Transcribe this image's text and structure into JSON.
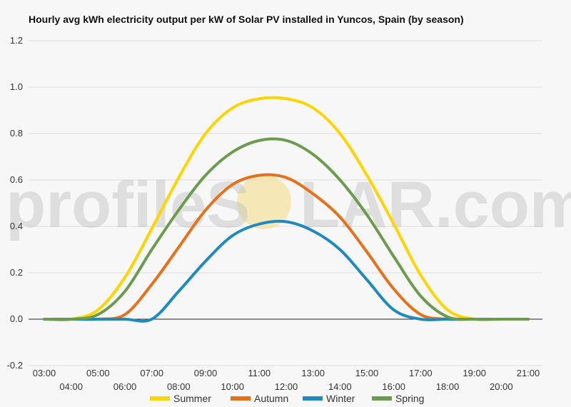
{
  "chart_data": {
    "type": "line",
    "title": "Hourly avg kWh electricity output per kW of Solar PV installed in Yuncos, Spain (by season)",
    "xlabel": "",
    "ylabel": "",
    "ylim": [
      -0.2,
      1.2
    ],
    "yticks": [
      "-0.2",
      "0.0",
      "0.2",
      "0.4",
      "0.6",
      "0.8",
      "1.0",
      "1.2"
    ],
    "ytick_values": [
      -0.2,
      0.0,
      0.2,
      0.4,
      0.6,
      0.8,
      1.0,
      1.2
    ],
    "x_hours": [
      3,
      4,
      5,
      6,
      7,
      8,
      9,
      10,
      11,
      12,
      13,
      14,
      15,
      16,
      17,
      18,
      19,
      20,
      21
    ],
    "xticks": [
      "03:00",
      "04:00",
      "05:00",
      "06:00",
      "07:00",
      "08:00",
      "09:00",
      "10:00",
      "11:00",
      "12:00",
      "13:00",
      "14:00",
      "15:00",
      "16:00",
      "17:00",
      "18:00",
      "19:00",
      "20:00",
      "21:00"
    ],
    "grid": true,
    "legend_position": "bottom",
    "series": [
      {
        "name": "Summer",
        "color": "#ffd400",
        "values": [
          0.0,
          0.0,
          0.04,
          0.18,
          0.39,
          0.61,
          0.8,
          0.91,
          0.95,
          0.95,
          0.91,
          0.8,
          0.62,
          0.41,
          0.19,
          0.04,
          0.0,
          0.0,
          0.0
        ]
      },
      {
        "name": "Autumn",
        "color": "#e8701a",
        "values": [
          0.0,
          0.0,
          0.0,
          0.02,
          0.15,
          0.31,
          0.47,
          0.58,
          0.62,
          0.61,
          0.54,
          0.44,
          0.29,
          0.13,
          0.02,
          0.0,
          0.0,
          0.0,
          0.0
        ]
      },
      {
        "name": "Winter",
        "color": "#1f8ac0",
        "values": [
          0.0,
          0.0,
          0.0,
          0.0,
          0.0,
          0.12,
          0.25,
          0.36,
          0.41,
          0.42,
          0.38,
          0.3,
          0.17,
          0.04,
          0.0,
          0.0,
          0.0,
          0.0,
          0.0
        ]
      },
      {
        "name": "Spring",
        "color": "#6b9c4e",
        "values": [
          0.0,
          0.0,
          0.02,
          0.12,
          0.3,
          0.47,
          0.62,
          0.72,
          0.77,
          0.77,
          0.71,
          0.6,
          0.45,
          0.27,
          0.1,
          0.01,
          0.0,
          0.0,
          0.0
        ]
      }
    ]
  },
  "watermark": {
    "text_left": "profileS",
    "text_right": "LAR.com",
    "sun_color": "#f6e3a0"
  }
}
